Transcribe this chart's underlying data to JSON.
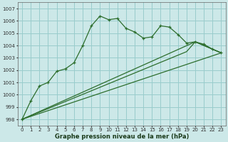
{
  "xlabel": "Graphe pression niveau de la mer (hPa)",
  "bg_color": "#cce8e8",
  "grid_color": "#99cccc",
  "line_color": "#2d6e2d",
  "xlim": [
    -0.5,
    23.5
  ],
  "ylim": [
    997.5,
    1007.5
  ],
  "yticks": [
    998,
    999,
    1000,
    1001,
    1002,
    1003,
    1004,
    1005,
    1006,
    1007
  ],
  "xticks": [
    0,
    1,
    2,
    3,
    4,
    5,
    6,
    7,
    8,
    9,
    10,
    11,
    12,
    13,
    14,
    15,
    16,
    17,
    18,
    19,
    20,
    21,
    22,
    23
  ],
  "series1_x": [
    0,
    1,
    2,
    3,
    4,
    5,
    6,
    7,
    8,
    9,
    10,
    11,
    12,
    13,
    14,
    15,
    16,
    17,
    18,
    19,
    20,
    21,
    22,
    23
  ],
  "series1_y": [
    998.0,
    999.5,
    1000.7,
    1001.0,
    1001.9,
    1002.1,
    1002.6,
    1004.0,
    1005.6,
    1006.4,
    1006.1,
    1006.2,
    1005.4,
    1005.1,
    1004.6,
    1004.7,
    1005.6,
    1005.5,
    1004.9,
    1004.2,
    1004.3,
    1004.1,
    1003.7,
    1003.4
  ],
  "series2_x": [
    0,
    23
  ],
  "series2_y": [
    998.0,
    1003.4
  ],
  "series3_x": [
    0,
    20,
    23
  ],
  "series3_y": [
    998.0,
    1004.3,
    1003.4
  ],
  "series4_x": [
    0,
    19,
    20,
    23
  ],
  "series4_y": [
    998.0,
    1003.5,
    1004.3,
    1003.4
  ]
}
